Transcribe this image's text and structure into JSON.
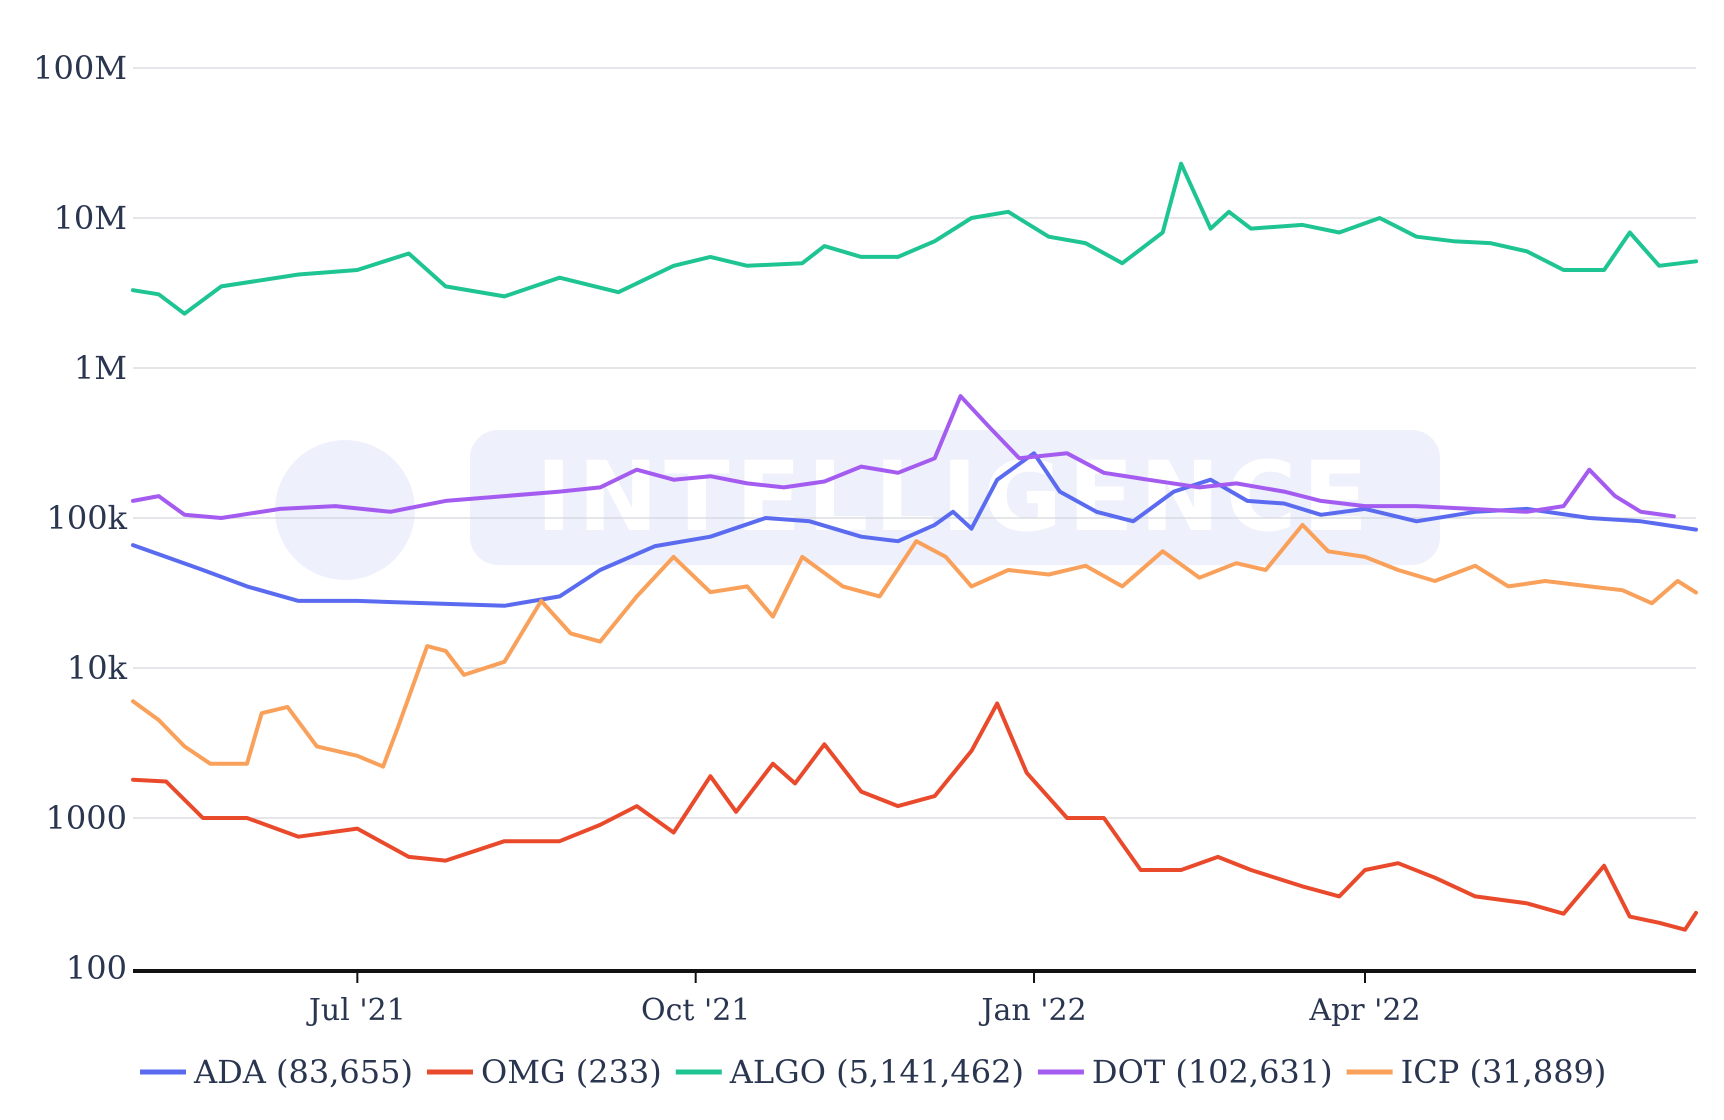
{
  "watermark": {
    "text": "INTELLIGENCE"
  },
  "chart_data": {
    "type": "line",
    "title": "",
    "xlabel": "",
    "ylabel": "",
    "y_scale": "log",
    "ylim": [
      100,
      100000000
    ],
    "xlim": [
      "2021-05-01",
      "2022-06-30"
    ],
    "grid": true,
    "legend_placement": "bottom",
    "y_ticks": [
      {
        "value": 100,
        "label": "100"
      },
      {
        "value": 1000,
        "label": "1000"
      },
      {
        "value": 10000,
        "label": "10k"
      },
      {
        "value": 100000,
        "label": "100k"
      },
      {
        "value": 1000000,
        "label": "1M"
      },
      {
        "value": 10000000,
        "label": "10M"
      },
      {
        "value": 100000000,
        "label": "100M"
      }
    ],
    "x_ticks": [
      {
        "value": "2021-07-01",
        "label": "Jul '21"
      },
      {
        "value": "2021-10-01",
        "label": "Oct '21"
      },
      {
        "value": "2022-01-01",
        "label": "Jan '22"
      },
      {
        "value": "2022-04-01",
        "label": "Apr '22"
      }
    ],
    "series": [
      {
        "name": "ADA (83,655)",
        "color": "#5b6bf0",
        "points": [
          [
            "2021-05-01",
            66000
          ],
          [
            "2021-05-10",
            55000
          ],
          [
            "2021-05-20",
            45000
          ],
          [
            "2021-06-01",
            35000
          ],
          [
            "2021-06-15",
            28000
          ],
          [
            "2021-07-01",
            28000
          ],
          [
            "2021-07-20",
            27000
          ],
          [
            "2021-08-10",
            26000
          ],
          [
            "2021-08-25",
            30000
          ],
          [
            "2021-09-05",
            45000
          ],
          [
            "2021-09-20",
            65000
          ],
          [
            "2021-10-05",
            75000
          ],
          [
            "2021-10-20",
            100000
          ],
          [
            "2021-11-01",
            95000
          ],
          [
            "2021-11-15",
            75000
          ],
          [
            "2021-11-25",
            70000
          ],
          [
            "2021-12-05",
            90000
          ],
          [
            "2021-12-10",
            110000
          ],
          [
            "2021-12-15",
            85000
          ],
          [
            "2021-12-22",
            180000
          ],
          [
            "2022-01-01",
            270000
          ],
          [
            "2022-01-08",
            150000
          ],
          [
            "2022-01-18",
            110000
          ],
          [
            "2022-01-28",
            95000
          ],
          [
            "2022-02-08",
            150000
          ],
          [
            "2022-02-18",
            180000
          ],
          [
            "2022-02-28",
            130000
          ],
          [
            "2022-03-10",
            125000
          ],
          [
            "2022-03-20",
            105000
          ],
          [
            "2022-04-01",
            115000
          ],
          [
            "2022-04-15",
            95000
          ],
          [
            "2022-05-01",
            110000
          ],
          [
            "2022-05-15",
            115000
          ],
          [
            "2022-06-01",
            100000
          ],
          [
            "2022-06-15",
            95000
          ],
          [
            "2022-06-30",
            83655
          ]
        ]
      },
      {
        "name": "OMG (233)",
        "color": "#ea4a2c",
        "points": [
          [
            "2021-05-01",
            1800
          ],
          [
            "2021-05-10",
            1750
          ],
          [
            "2021-05-20",
            1000
          ],
          [
            "2021-06-01",
            1000
          ],
          [
            "2021-06-15",
            750
          ],
          [
            "2021-07-01",
            850
          ],
          [
            "2021-07-15",
            550
          ],
          [
            "2021-07-25",
            520
          ],
          [
            "2021-08-10",
            700
          ],
          [
            "2021-08-25",
            700
          ],
          [
            "2021-09-05",
            900
          ],
          [
            "2021-09-15",
            1200
          ],
          [
            "2021-09-25",
            800
          ],
          [
            "2021-10-05",
            1900
          ],
          [
            "2021-10-12",
            1100
          ],
          [
            "2021-10-22",
            2300
          ],
          [
            "2021-10-28",
            1700
          ],
          [
            "2021-11-05",
            3100
          ],
          [
            "2021-11-15",
            1500
          ],
          [
            "2021-11-25",
            1200
          ],
          [
            "2021-12-05",
            1400
          ],
          [
            "2021-12-15",
            2800
          ],
          [
            "2021-12-22",
            5800
          ],
          [
            "2021-12-30",
            2000
          ],
          [
            "2022-01-10",
            1000
          ],
          [
            "2022-01-20",
            1000
          ],
          [
            "2022-01-30",
            450
          ],
          [
            "2022-02-10",
            450
          ],
          [
            "2022-02-20",
            550
          ],
          [
            "2022-03-01",
            450
          ],
          [
            "2022-03-15",
            350
          ],
          [
            "2022-03-25",
            300
          ],
          [
            "2022-04-01",
            450
          ],
          [
            "2022-04-10",
            500
          ],
          [
            "2022-04-20",
            400
          ],
          [
            "2022-05-01",
            300
          ],
          [
            "2022-05-15",
            270
          ],
          [
            "2022-05-25",
            230
          ],
          [
            "2022-06-05",
            480
          ],
          [
            "2022-06-12",
            220
          ],
          [
            "2022-06-20",
            200
          ],
          [
            "2022-06-27",
            180
          ],
          [
            "2022-06-30",
            233
          ]
        ]
      },
      {
        "name": "ALGO (5,141,462)",
        "color": "#1fc493",
        "points": [
          [
            "2021-05-01",
            3300000
          ],
          [
            "2021-05-08",
            3100000
          ],
          [
            "2021-05-15",
            2300000
          ],
          [
            "2021-05-25",
            3500000
          ],
          [
            "2021-06-15",
            4200000
          ],
          [
            "2021-07-01",
            4500000
          ],
          [
            "2021-07-15",
            5800000
          ],
          [
            "2021-07-25",
            3500000
          ],
          [
            "2021-08-10",
            3000000
          ],
          [
            "2021-08-25",
            4000000
          ],
          [
            "2021-09-10",
            3200000
          ],
          [
            "2021-09-25",
            4800000
          ],
          [
            "2021-10-05",
            5500000
          ],
          [
            "2021-10-15",
            4800000
          ],
          [
            "2021-10-30",
            5000000
          ],
          [
            "2021-11-05",
            6500000
          ],
          [
            "2021-11-15",
            5500000
          ],
          [
            "2021-11-25",
            5500000
          ],
          [
            "2021-12-05",
            7000000
          ],
          [
            "2021-12-15",
            10000000
          ],
          [
            "2021-12-25",
            11000000
          ],
          [
            "2022-01-05",
            7500000
          ],
          [
            "2022-01-15",
            6800000
          ],
          [
            "2022-01-25",
            5000000
          ],
          [
            "2022-02-05",
            8000000
          ],
          [
            "2022-02-10",
            23000000
          ],
          [
            "2022-02-18",
            8500000
          ],
          [
            "2022-02-23",
            11000000
          ],
          [
            "2022-03-01",
            8500000
          ],
          [
            "2022-03-15",
            9000000
          ],
          [
            "2022-03-25",
            8000000
          ],
          [
            "2022-04-05",
            10000000
          ],
          [
            "2022-04-15",
            7500000
          ],
          [
            "2022-04-25",
            7000000
          ],
          [
            "2022-05-05",
            6800000
          ],
          [
            "2022-05-15",
            6000000
          ],
          [
            "2022-05-25",
            4500000
          ],
          [
            "2022-06-05",
            4500000
          ],
          [
            "2022-06-12",
            8000000
          ],
          [
            "2022-06-20",
            4800000
          ],
          [
            "2022-06-30",
            5141462
          ]
        ]
      },
      {
        "name": "DOT (102,631)",
        "color": "#a45cf0",
        "points": [
          [
            "2021-05-01",
            130000
          ],
          [
            "2021-05-08",
            140000
          ],
          [
            "2021-05-15",
            105000
          ],
          [
            "2021-05-25",
            100000
          ],
          [
            "2021-06-10",
            115000
          ],
          [
            "2021-06-25",
            120000
          ],
          [
            "2021-07-10",
            110000
          ],
          [
            "2021-07-25",
            130000
          ],
          [
            "2021-08-10",
            140000
          ],
          [
            "2021-08-25",
            150000
          ],
          [
            "2021-09-05",
            160000
          ],
          [
            "2021-09-15",
            210000
          ],
          [
            "2021-09-25",
            180000
          ],
          [
            "2021-10-05",
            190000
          ],
          [
            "2021-10-15",
            170000
          ],
          [
            "2021-10-25",
            160000
          ],
          [
            "2021-11-05",
            175000
          ],
          [
            "2021-11-15",
            220000
          ],
          [
            "2021-11-25",
            200000
          ],
          [
            "2021-12-05",
            250000
          ],
          [
            "2021-12-12",
            650000
          ],
          [
            "2021-12-20",
            400000
          ],
          [
            "2021-12-28",
            250000
          ],
          [
            "2022-01-10",
            270000
          ],
          [
            "2022-01-20",
            200000
          ],
          [
            "2022-02-01",
            180000
          ],
          [
            "2022-02-15",
            160000
          ],
          [
            "2022-02-25",
            170000
          ],
          [
            "2022-03-10",
            150000
          ],
          [
            "2022-03-20",
            130000
          ],
          [
            "2022-04-01",
            120000
          ],
          [
            "2022-04-15",
            120000
          ],
          [
            "2022-04-30",
            115000
          ],
          [
            "2022-05-15",
            110000
          ],
          [
            "2022-05-25",
            120000
          ],
          [
            "2022-06-01",
            210000
          ],
          [
            "2022-06-08",
            140000
          ],
          [
            "2022-06-15",
            110000
          ],
          [
            "2022-06-24",
            102631
          ]
        ]
      },
      {
        "name": "ICP (31,889)",
        "color": "#f9a05a",
        "points": [
          [
            "2021-05-01",
            6000
          ],
          [
            "2021-05-08",
            4500
          ],
          [
            "2021-05-15",
            3000
          ],
          [
            "2021-05-22",
            2300
          ],
          [
            "2021-06-01",
            2300
          ],
          [
            "2021-06-05",
            5000
          ],
          [
            "2021-06-12",
            5500
          ],
          [
            "2021-06-20",
            3000
          ],
          [
            "2021-07-01",
            2600
          ],
          [
            "2021-07-08",
            2200
          ],
          [
            "2021-07-12",
            4000
          ],
          [
            "2021-07-20",
            14000
          ],
          [
            "2021-07-25",
            13000
          ],
          [
            "2021-07-30",
            9000
          ],
          [
            "2021-08-10",
            11000
          ],
          [
            "2021-08-20",
            28000
          ],
          [
            "2021-08-28",
            17000
          ],
          [
            "2021-09-05",
            15000
          ],
          [
            "2021-09-15",
            30000
          ],
          [
            "2021-09-25",
            55000
          ],
          [
            "2021-10-05",
            32000
          ],
          [
            "2021-10-15",
            35000
          ],
          [
            "2021-10-22",
            22000
          ],
          [
            "2021-10-30",
            55000
          ],
          [
            "2021-11-10",
            35000
          ],
          [
            "2021-11-20",
            30000
          ],
          [
            "2021-11-30",
            70000
          ],
          [
            "2021-12-08",
            55000
          ],
          [
            "2021-12-15",
            35000
          ],
          [
            "2021-12-25",
            45000
          ],
          [
            "2022-01-05",
            42000
          ],
          [
            "2022-01-15",
            48000
          ],
          [
            "2022-01-25",
            35000
          ],
          [
            "2022-02-05",
            60000
          ],
          [
            "2022-02-15",
            40000
          ],
          [
            "2022-02-25",
            50000
          ],
          [
            "2022-03-05",
            45000
          ],
          [
            "2022-03-15",
            90000
          ],
          [
            "2022-03-22",
            60000
          ],
          [
            "2022-04-01",
            55000
          ],
          [
            "2022-04-10",
            45000
          ],
          [
            "2022-04-20",
            38000
          ],
          [
            "2022-05-01",
            48000
          ],
          [
            "2022-05-10",
            35000
          ],
          [
            "2022-05-20",
            38000
          ],
          [
            "2022-06-01",
            35000
          ],
          [
            "2022-06-10",
            33000
          ],
          [
            "2022-06-18",
            27000
          ],
          [
            "2022-06-25",
            38000
          ],
          [
            "2022-06-30",
            31889
          ]
        ]
      }
    ]
  }
}
